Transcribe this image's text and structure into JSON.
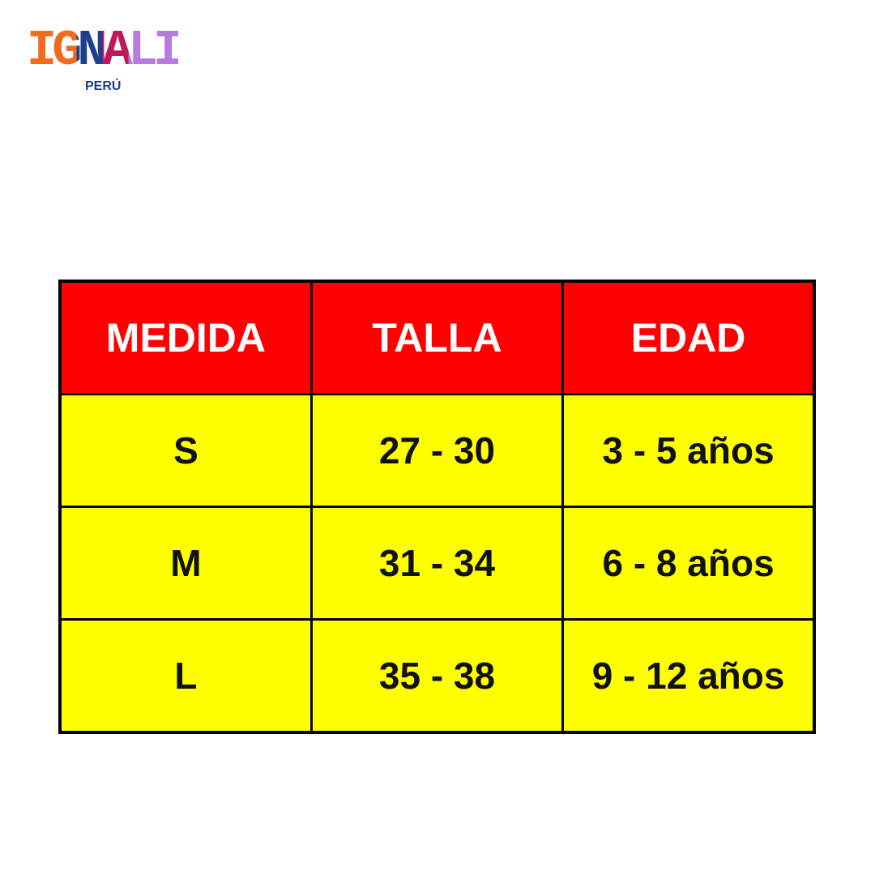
{
  "logo": {
    "name": "IGNALI",
    "subtitle": "PERÚ"
  },
  "table": {
    "header": [
      "MEDIDA",
      "TALLA",
      "EDAD"
    ],
    "rows": [
      [
        "S",
        "27 - 30",
        "3 - 5 años"
      ],
      [
        "M",
        "31 - 34",
        "6 - 8 años"
      ],
      [
        "L",
        "35 - 38",
        "9 - 12 años"
      ]
    ]
  }
}
